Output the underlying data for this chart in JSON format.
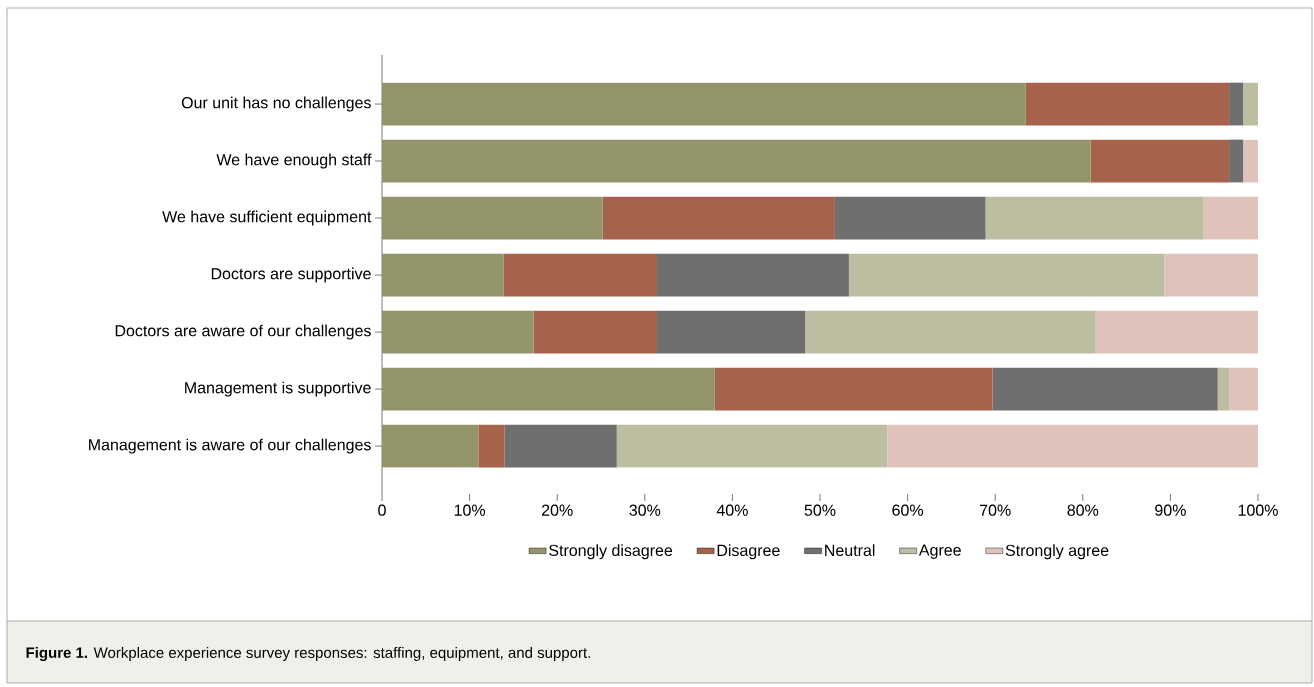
{
  "chart_data": {
    "type": "bar",
    "orientation": "horizontal",
    "stacked": true,
    "categories": [
      "Our unit has no challenges",
      "We have enough staff",
      "We have sufficient equipment",
      "Doctors are supportive",
      "Doctors are aware of our challenges",
      "Management is supportive",
      "Management is aware of our challenges"
    ],
    "series": [
      {
        "name": "Strongly disagree",
        "color": "#939469",
        "values": [
          73.5,
          80.9,
          25.2,
          13.9,
          17.3,
          38.0,
          11.0
        ]
      },
      {
        "name": "Disagree",
        "color": "#a6624a",
        "values": [
          23.2,
          15.8,
          26.5,
          17.5,
          14.1,
          31.7,
          3.0
        ]
      },
      {
        "name": "Neutral",
        "color": "#6f6f6f",
        "values": [
          1.6,
          1.6,
          17.2,
          21.9,
          16.9,
          25.7,
          12.8
        ]
      },
      {
        "name": "Agree",
        "color": "#bdbda2",
        "values": [
          1.7,
          0,
          24.9,
          36.0,
          33.1,
          1.3,
          30.9
        ]
      },
      {
        "name": "Strongly agree",
        "color": "#dfc3ba",
        "values": [
          0,
          1.7,
          6.2,
          10.7,
          18.6,
          3.3,
          42.3
        ]
      }
    ],
    "xlim": [
      0,
      100
    ],
    "xticks": [
      0,
      {
        "value": 10,
        "label": "10%"
      },
      {
        "value": 20,
        "label": "20%"
      },
      {
        "value": 30,
        "label": "30%"
      },
      {
        "value": 40,
        "label": "40%"
      },
      {
        "value": 50,
        "label": "50%"
      },
      {
        "value": 60,
        "label": "60%"
      },
      {
        "value": 70,
        "label": "70%"
      },
      {
        "value": 80,
        "label": "80%"
      },
      {
        "value": 90,
        "label": "90%"
      },
      {
        "value": 100,
        "label": "100%"
      }
    ],
    "legend": "bottom",
    "annotations": [
      "**Figure 1.** Workplace experience survey responses: staffing, equipment, and support."
    ]
  }
}
